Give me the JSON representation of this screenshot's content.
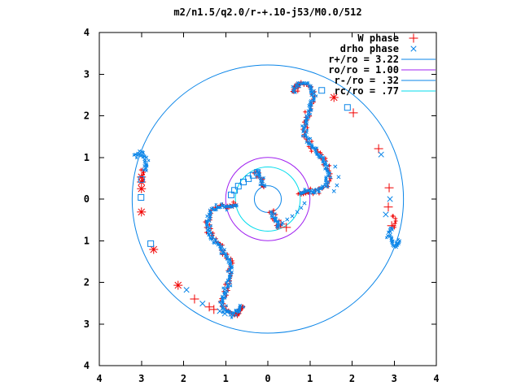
{
  "title": "m2/n1.5/q2.0/r-+.10-j53/M0.0/512",
  "chart_data": {
    "type": "scatter",
    "title": "m2/n1.5/q2.0/r-+.10-j53/M0.0/512",
    "xlabel": "",
    "ylabel": "",
    "xlim": [
      -4,
      4
    ],
    "ylim": [
      -4,
      4
    ],
    "grid": false,
    "legend_position": "top-right",
    "x_tick_labels": [
      "4",
      "3",
      "2",
      "1",
      "0",
      "1",
      "2",
      "3",
      "4"
    ],
    "y_tick_labels": [
      "4",
      "3",
      "2",
      "1",
      "0",
      "1",
      "2",
      "3",
      "4"
    ],
    "colors": {
      "red": "#f00000",
      "blue": "#0a85e8",
      "purple": "#a020f0",
      "cyan": "#00dcec",
      "axis": "#000000",
      "background": "#ffffff"
    },
    "legend": [
      {
        "label": "W phase",
        "sample": "marker",
        "marker": "plus",
        "color_key": "red"
      },
      {
        "label": "drho phase",
        "sample": "marker",
        "marker": "cross",
        "color_key": "blue"
      },
      {
        "label": "r+/ro = 3.22",
        "sample": "line",
        "color_key": "blue"
      },
      {
        "label": "ro/ro = 1.00",
        "sample": "line",
        "color_key": "purple"
      },
      {
        "label": "r-/ro = .32",
        "sample": "line",
        "color_key": "blue"
      },
      {
        "label": "rc/ro = .77",
        "sample": "line",
        "color_key": "cyan"
      }
    ],
    "circles": [
      {
        "label": "r+/ro = 3.22",
        "r": 3.22,
        "color_key": "blue"
      },
      {
        "label": "ro/ro = 1.00",
        "r": 1.0,
        "color_key": "purple"
      },
      {
        "label": "r-/ro = .32",
        "r": 0.32,
        "color_key": "blue"
      },
      {
        "label": "rc/ro = .77",
        "r": 0.77,
        "color_key": "cyan"
      }
    ],
    "paths": {
      "arm1_main": [
        [
          0.62,
          2.57
        ],
        [
          0.68,
          2.71
        ],
        [
          0.81,
          2.77
        ],
        [
          0.95,
          2.73
        ],
        [
          1.06,
          2.61
        ],
        [
          1.08,
          2.44
        ],
        [
          1.0,
          2.2
        ],
        [
          0.91,
          1.93
        ],
        [
          0.87,
          1.66
        ],
        [
          0.93,
          1.42
        ],
        [
          1.08,
          1.21
        ],
        [
          1.26,
          1.03
        ],
        [
          1.37,
          0.86
        ],
        [
          1.43,
          0.64
        ],
        [
          1.41,
          0.43
        ],
        [
          1.33,
          0.27
        ],
        [
          1.18,
          0.19
        ],
        [
          0.99,
          0.18
        ],
        [
          0.79,
          0.16
        ],
        [
          0.76,
          0.1
        ]
      ],
      "arm2_main": [
        [
          -0.62,
          -2.57
        ],
        [
          -0.68,
          -2.71
        ],
        [
          -0.81,
          -2.77
        ],
        [
          -0.95,
          -2.73
        ],
        [
          -1.06,
          -2.61
        ],
        [
          -1.08,
          -2.44
        ],
        [
          -1.0,
          -2.2
        ],
        [
          -0.91,
          -1.93
        ],
        [
          -0.87,
          -1.66
        ],
        [
          -0.93,
          -1.42
        ],
        [
          -1.08,
          -1.21
        ],
        [
          -1.26,
          -1.03
        ],
        [
          -1.37,
          -0.86
        ],
        [
          -1.43,
          -0.64
        ],
        [
          -1.41,
          -0.43
        ],
        [
          -1.33,
          -0.27
        ],
        [
          -1.18,
          -0.19
        ],
        [
          -0.99,
          -0.18
        ],
        [
          -0.79,
          -0.16
        ],
        [
          -0.76,
          -0.1
        ]
      ],
      "arm1_inner": [
        [
          0.27,
          -0.66
        ],
        [
          0.18,
          -0.52
        ],
        [
          0.1,
          -0.36
        ],
        [
          0.07,
          -0.3
        ]
      ],
      "arm2_inner": [
        [
          -0.27,
          0.66
        ],
        [
          -0.18,
          0.52
        ],
        [
          -0.1,
          0.36
        ],
        [
          -0.07,
          0.3
        ]
      ],
      "left_hook": [
        [
          -3.15,
          1.03
        ],
        [
          -3.03,
          1.13
        ],
        [
          -2.92,
          1.03
        ],
        [
          -2.88,
          0.86
        ],
        [
          -2.96,
          0.68
        ]
      ],
      "right_hook": [
        [
          3.15,
          -1.03
        ],
        [
          3.03,
          -1.13
        ],
        [
          2.92,
          -1.03
        ],
        [
          2.88,
          -0.86
        ],
        [
          2.96,
          -0.68
        ]
      ],
      "left_stripe": [
        [
          -2.99,
          0.7
        ],
        [
          -2.99,
          0.41
        ]
      ],
      "right_stripe": [
        [
          2.99,
          -0.41
        ],
        [
          2.99,
          -0.7
        ]
      ]
    },
    "series": [
      {
        "name": "W phase",
        "color_key": "red",
        "marker": "plus",
        "bands": [
          "arm1_main",
          "arm2_main",
          "arm1_inner",
          "arm2_inner",
          "left_stripe",
          "right_stripe"
        ],
        "points": [
          [
            1.57,
            2.44,
            "star"
          ],
          [
            2.03,
            2.07
          ],
          [
            2.63,
            1.21
          ],
          [
            2.88,
            0.27
          ],
          [
            2.86,
            -0.19
          ],
          [
            2.94,
            -0.64
          ],
          [
            0.31,
            -0.6
          ],
          [
            0.44,
            -0.68
          ],
          [
            -3.0,
            0.53,
            "star"
          ],
          [
            -3.0,
            0.41,
            "star"
          ],
          [
            -3.0,
            0.25,
            "star"
          ],
          [
            -3.0,
            -0.31,
            "star"
          ],
          [
            -2.71,
            -1.21,
            "star"
          ],
          [
            -2.13,
            -2.07,
            "star"
          ],
          [
            -1.74,
            -2.4
          ],
          [
            -1.39,
            -2.59
          ],
          [
            -1.28,
            -2.65
          ]
        ]
      },
      {
        "name": "drho phase",
        "color_key": "blue",
        "marker": "cross",
        "bands": [
          "arm1_main",
          "arm2_main",
          "arm1_inner",
          "arm2_inner",
          "left_hook",
          "right_hook"
        ],
        "points": [
          [
            2.69,
            1.07
          ],
          [
            2.9,
            0.0
          ],
          [
            2.8,
            -0.37
          ],
          [
            -1.93,
            -2.18
          ],
          [
            -1.55,
            -2.51
          ],
          [
            -1.14,
            -2.69
          ],
          [
            -1.02,
            -2.75
          ],
          [
            0.87,
            -0.1,
            "cross",
            6
          ],
          [
            0.79,
            -0.21,
            "cross",
            6
          ],
          [
            0.7,
            -0.31,
            "cross",
            6
          ],
          [
            0.58,
            -0.41,
            "cross",
            6
          ],
          [
            0.46,
            -0.49,
            "cross",
            6
          ],
          [
            0.35,
            -0.57,
            "cross",
            6
          ],
          [
            0.25,
            -0.64,
            "cross",
            6
          ],
          [
            1.6,
            0.78,
            "cross",
            6
          ],
          [
            1.68,
            0.53,
            "cross",
            6
          ],
          [
            1.64,
            0.33,
            "cross",
            6
          ],
          [
            1.57,
            0.19,
            "cross",
            6
          ],
          [
            1.28,
            2.61,
            "square",
            7
          ],
          [
            1.89,
            2.2,
            "square",
            7
          ],
          [
            -3.0,
            0.47,
            "square",
            7
          ],
          [
            -3.01,
            0.04,
            "square",
            7
          ],
          [
            -2.78,
            -1.07,
            "square",
            7
          ],
          [
            -0.87,
            0.1,
            "square",
            7
          ],
          [
            -0.79,
            0.21,
            "square",
            7
          ],
          [
            -0.7,
            0.31,
            "square",
            7
          ],
          [
            -0.58,
            0.41,
            "square",
            7
          ],
          [
            -0.46,
            0.49,
            "square",
            7
          ],
          [
            -0.35,
            0.57,
            "square",
            7
          ],
          [
            -0.25,
            0.64,
            "square",
            7
          ]
        ]
      }
    ]
  }
}
